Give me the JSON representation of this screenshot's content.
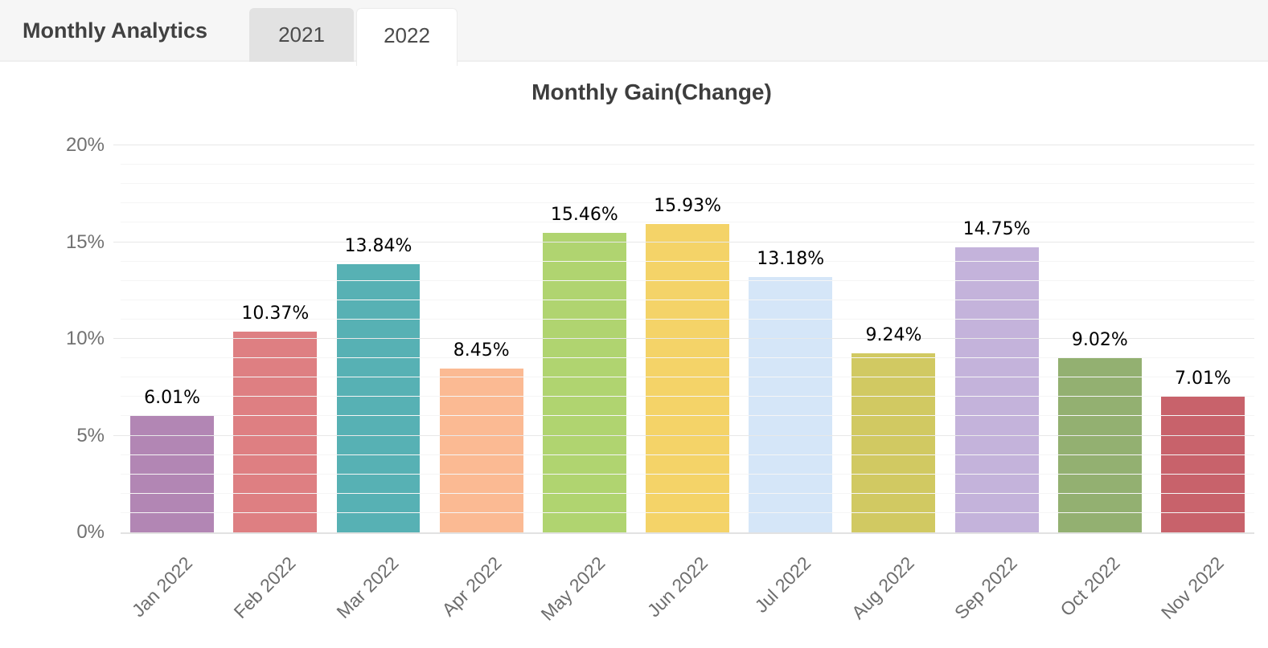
{
  "header": {
    "title": "Monthly Analytics",
    "tabs": [
      {
        "label": "2021",
        "active": false
      },
      {
        "label": "2022",
        "active": true
      }
    ]
  },
  "chart_data": {
    "type": "bar",
    "title": "Monthly Gain(Change)",
    "categories": [
      "Jan 2022",
      "Feb 2022",
      "Mar 2022",
      "Apr 2022",
      "May 2022",
      "Jun 2022",
      "Jul 2022",
      "Aug 2022",
      "Sep 2022",
      "Oct 2022",
      "Nov 2022"
    ],
    "values": [
      6.01,
      10.37,
      13.84,
      8.45,
      15.46,
      15.93,
      13.18,
      9.24,
      14.75,
      9.02,
      7.01
    ],
    "value_labels": [
      "6.01%",
      "10.37%",
      "13.84%",
      "8.45%",
      "15.46%",
      "15.93%",
      "13.18%",
      "9.24%",
      "14.75%",
      "9.02%",
      "7.01%"
    ],
    "bar_colors": [
      "#b286b4",
      "#de7f82",
      "#57b1b4",
      "#fbba93",
      "#b0d470",
      "#f4d368",
      "#d5e6f8",
      "#d1c962",
      "#c4b3db",
      "#93b071",
      "#c8626b"
    ],
    "y_ticks": [
      "0%",
      "5%",
      "10%",
      "15%",
      "20%"
    ],
    "ylim": [
      0,
      20
    ],
    "major_grid_step": 5,
    "minor_grid_step": 1,
    "xlabel": "",
    "ylabel": "",
    "legend_position": "none",
    "grid": "on",
    "x_label_rotation_deg": -45
  },
  "colors": {
    "header_bg": "#f6f6f6",
    "tab_inactive_bg": "#e2e2e2",
    "tab_active_bg": "#ffffff",
    "grid_major": "#e8e8e8",
    "grid_minor": "#f5f5f5",
    "axis_text": "#717171",
    "data_label_text": "#000000",
    "title_text": "#3d3d3d"
  }
}
